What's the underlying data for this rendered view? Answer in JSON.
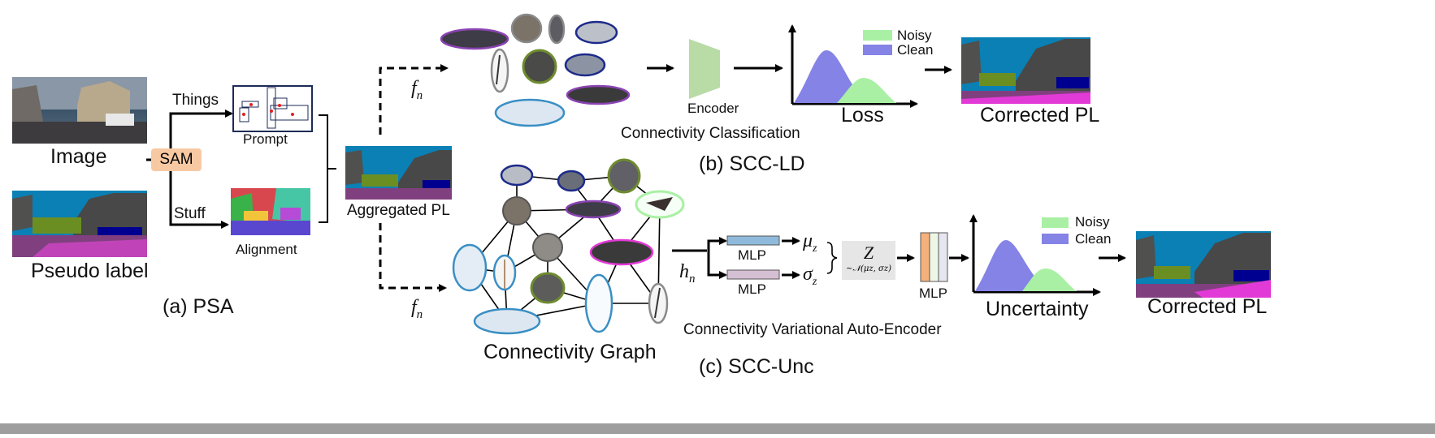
{
  "colors": {
    "noisy": "#a9f0a4",
    "clean": "#8583e6",
    "sam": "#f7c9a3",
    "encoder": "#b9dba6",
    "mlp_mu": "#8fbadb",
    "mlp_sigma": "#d5bfd3",
    "bottom_bar": "#9e9e9e"
  },
  "psa": {
    "image_label": "Image",
    "pseudo_label": "Pseudo label",
    "sam": "SAM",
    "things": "Things",
    "stuff": "Stuff",
    "prompt": "Prompt",
    "alignment": "Alignment",
    "aggregated": "Aggregated PL",
    "caption": "(a) PSA"
  },
  "ld": {
    "fn": "f",
    "fn_sub": "n",
    "encoder": "Encoder",
    "task": "Connectivity Classification",
    "loss": "Loss",
    "legend": [
      "Noisy",
      "Clean"
    ],
    "corrected": "Corrected PL",
    "caption": "(b) SCC-LD"
  },
  "unc": {
    "fn": "f",
    "fn_sub": "n",
    "hn": "h",
    "hn_sub": "n",
    "graph": "Connectivity Graph",
    "mlp": "MLP",
    "mu": "μ",
    "mu_sub": "z",
    "sigma": "σ",
    "sigma_sub": "z",
    "z": "Z",
    "z_dist": "~𝒩(μz, σz)",
    "vae": "Connectivity Variational Auto-Encoder",
    "uncertainty": "Uncertainty",
    "legend": [
      "Noisy",
      "Clean"
    ],
    "corrected": "Corrected PL",
    "caption": "(c) SCC-Unc"
  }
}
